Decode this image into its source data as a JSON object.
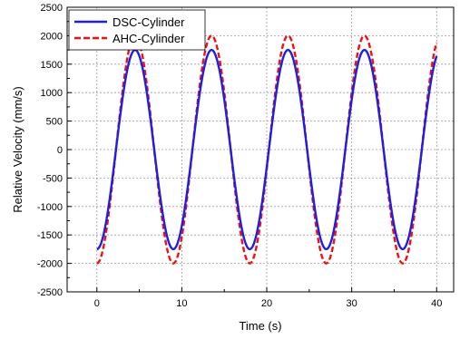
{
  "chart_data": {
    "type": "line",
    "title": "",
    "xlabel": "Time (s)",
    "ylabel": "Relative Velocity (mm/s)",
    "xlim": [
      -3.5,
      42
    ],
    "ylim": [
      -2500,
      2500
    ],
    "xticks": [
      0,
      10,
      20,
      30,
      40
    ],
    "yticks": [
      -2500,
      -2000,
      -1500,
      -1000,
      -500,
      0,
      500,
      1000,
      1500,
      2000,
      2500
    ],
    "grid": true,
    "legend_position": "top-left",
    "series": [
      {
        "name": "DSC-Cylinder",
        "color": "#1f1fe0",
        "line_style": "solid",
        "amplitude": 1750,
        "period": 9.0,
        "start_phase": "minimum",
        "x_range": [
          0,
          40
        ],
        "points": [
          {
            "x": 0,
            "y": -1750
          },
          {
            "x": 4.5,
            "y": 1750
          },
          {
            "x": 9,
            "y": -1750
          },
          {
            "x": 13.5,
            "y": 1750
          },
          {
            "x": 18,
            "y": -1750
          },
          {
            "x": 22.5,
            "y": 1750
          },
          {
            "x": 27,
            "y": -1750
          },
          {
            "x": 31.5,
            "y": 1750
          },
          {
            "x": 36,
            "y": -1750
          },
          {
            "x": 40,
            "y": 1650
          }
        ]
      },
      {
        "name": "AHC-Cylinder",
        "color": "#ee1111",
        "line_style": "dashed",
        "amplitude": 2000,
        "period": 9.0,
        "start_phase": "minimum",
        "x_range": [
          0,
          40
        ],
        "points": [
          {
            "x": 0,
            "y": -2000
          },
          {
            "x": 4.5,
            "y": 2000
          },
          {
            "x": 9,
            "y": -2000
          },
          {
            "x": 13.5,
            "y": 2000
          },
          {
            "x": 18,
            "y": -2000
          },
          {
            "x": 22.5,
            "y": 2000
          },
          {
            "x": 27,
            "y": -2000
          },
          {
            "x": 31.5,
            "y": 2000
          },
          {
            "x": 36,
            "y": -2000
          },
          {
            "x": 40,
            "y": 1880
          }
        ]
      }
    ]
  }
}
